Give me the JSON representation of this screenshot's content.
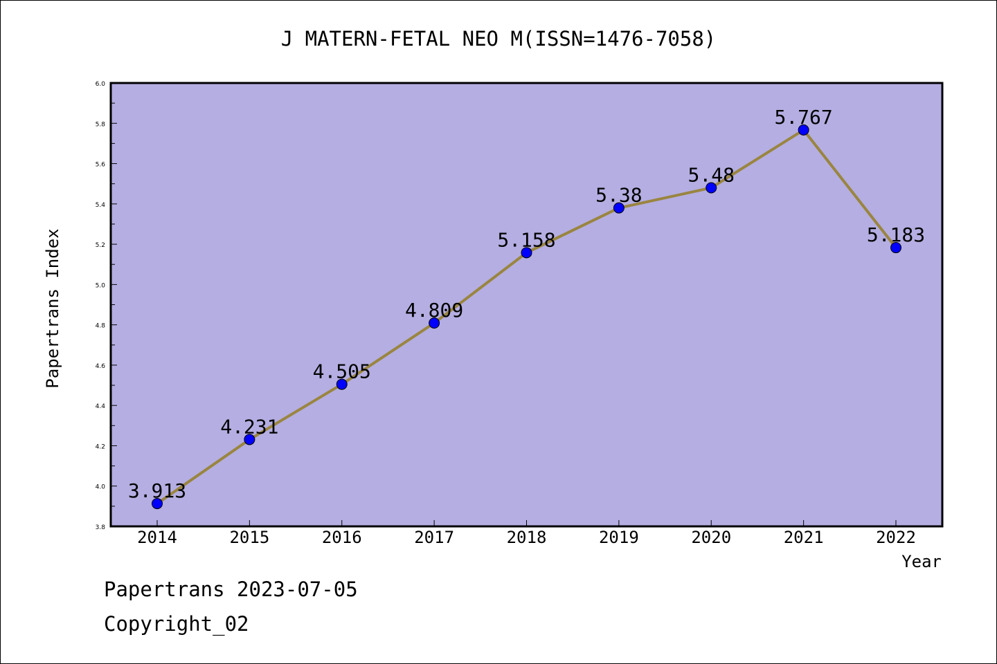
{
  "chart_data": {
    "type": "line",
    "title": "J MATERN-FETAL NEO M(ISSN=1476-7058)",
    "xlabel": "Year",
    "ylabel": "Papertrans Index",
    "categories": [
      "2014",
      "2015",
      "2016",
      "2017",
      "2018",
      "2019",
      "2020",
      "2021",
      "2022"
    ],
    "series": [
      {
        "values": [
          3.913,
          4.231,
          4.505,
          4.809,
          5.158,
          5.38,
          5.48,
          5.767,
          5.183
        ]
      }
    ],
    "data_labels": [
      "3.913",
      "4.231",
      "4.505",
      "4.809",
      "5.158",
      "5.38",
      "5.48",
      "5.767",
      "5.183"
    ],
    "ylim": [
      3.8,
      6.0
    ],
    "yticks": [
      "3.8",
      "4.0",
      "4.2",
      "4.4",
      "4.6",
      "4.8",
      "5.0",
      "5.2",
      "5.4",
      "5.6",
      "5.8",
      "6.0"
    ],
    "grid": false,
    "colors": {
      "plot_background": "#b4aee2",
      "line": "#9a8540",
      "marker": "#0000ff"
    }
  },
  "footer": {
    "line1": "Papertrans 2023-07-05",
    "line2": "Copyright_02"
  }
}
